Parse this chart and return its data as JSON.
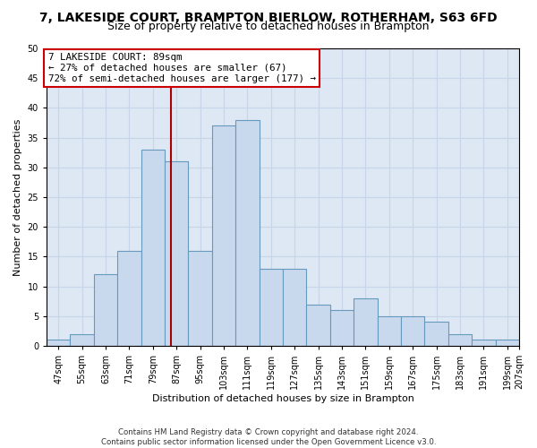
{
  "title": "7, LAKESIDE COURT, BRAMPTON BIERLOW, ROTHERHAM, S63 6FD",
  "subtitle": "Size of property relative to detached houses in Brampton",
  "xlabel": "Distribution of detached houses by size in Brampton",
  "ylabel": "Number of detached properties",
  "bins": [
    47,
    55,
    63,
    71,
    79,
    87,
    95,
    103,
    111,
    119,
    127,
    135,
    143,
    151,
    159,
    167,
    175,
    183,
    191,
    199,
    207
  ],
  "counts": [
    1,
    2,
    12,
    16,
    33,
    31,
    16,
    37,
    38,
    13,
    13,
    7,
    6,
    8,
    5,
    5,
    4,
    2,
    1,
    1
  ],
  "bar_color": "#c9d9ed",
  "bar_edge_color": "#6699bb",
  "property_size": 89,
  "vline_color": "#aa0000",
  "annotation_text": "7 LAKESIDE COURT: 89sqm\n← 27% of detached houses are smaller (67)\n72% of semi-detached houses are larger (177) →",
  "annotation_box_color": "#ffffff",
  "annotation_edge_color": "#cc0000",
  "ylim": [
    0,
    50
  ],
  "yticks": [
    0,
    5,
    10,
    15,
    20,
    25,
    30,
    35,
    40,
    45,
    50
  ],
  "grid_color": "#c8d4e8",
  "background_color": "#dde8f4",
  "fig_background_color": "#ffffff",
  "title_fontsize": 10,
  "subtitle_fontsize": 9,
  "axis_label_fontsize": 8,
  "tick_fontsize": 7,
  "footer_line1": "Contains HM Land Registry data © Crown copyright and database right 2024.",
  "footer_line2": "Contains public sector information licensed under the Open Government Licence v3.0."
}
